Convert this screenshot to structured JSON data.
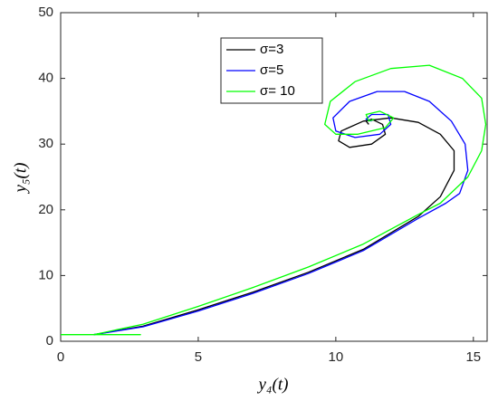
{
  "chart_data": {
    "type": "line",
    "xlabel": "y₄(t)",
    "ylabel": "y₅(t)",
    "xlim": [
      0,
      15.5
    ],
    "ylim": [
      0,
      50
    ],
    "xticks": [
      0,
      5,
      10,
      15
    ],
    "yticks": [
      0,
      10,
      20,
      30,
      40,
      50
    ],
    "grid": false,
    "legend": "upper center",
    "series": [
      {
        "name": "σ=3",
        "color": "#000000",
        "x": [
          1.2,
          3,
          5,
          7,
          9,
          11,
          13,
          13.8,
          14.3,
          14.3,
          13.8,
          13,
          12,
          11,
          10.2,
          10.1,
          10.5,
          11.3,
          11.8,
          11.7,
          11.3,
          11.1,
          11.2
        ],
        "values": [
          1,
          2.3,
          4.8,
          7.5,
          10.5,
          14,
          19,
          22,
          26,
          29,
          31.5,
          33.3,
          34,
          33.5,
          32,
          30.5,
          29.5,
          30,
          31.5,
          33,
          33.8,
          33.5,
          33
        ]
      },
      {
        "name": "σ=5",
        "color": "#0000ff",
        "x": [
          1.2,
          3,
          5,
          7,
          9,
          11,
          13,
          14,
          14.5,
          14.8,
          14.7,
          14.2,
          13.4,
          12.5,
          11.5,
          10.5,
          9.9,
          10,
          10.7,
          11.6,
          12,
          11.9,
          11.3,
          11.1,
          11.3
        ],
        "values": [
          1,
          2.2,
          4.6,
          7.3,
          10.3,
          13.8,
          18.7,
          21,
          22.5,
          26,
          30,
          33.5,
          36.5,
          38,
          38,
          36.5,
          34,
          32,
          31,
          31.5,
          33,
          34.5,
          34.5,
          33.8,
          33.5
        ]
      },
      {
        "name": "σ= 10",
        "color": "#00ff00",
        "x": [
          0,
          2.9,
          1.2,
          3,
          5,
          7,
          9,
          11,
          13,
          13.8,
          14.8,
          15.3,
          15.45,
          15.3,
          14.6,
          13.4,
          12,
          10.7,
          9.8,
          9.6,
          10,
          10.8,
          11.8,
          12.1,
          11.6,
          11.1,
          11.2,
          11.4
        ],
        "values": [
          1,
          1,
          1,
          2.6,
          5.3,
          8.2,
          11.3,
          14.8,
          19.3,
          21,
          25,
          29,
          33,
          37,
          40,
          42,
          41.5,
          39.5,
          36.5,
          33,
          31.5,
          31.5,
          32.5,
          34,
          35,
          34.5,
          33.5,
          33.8
        ]
      }
    ]
  }
}
